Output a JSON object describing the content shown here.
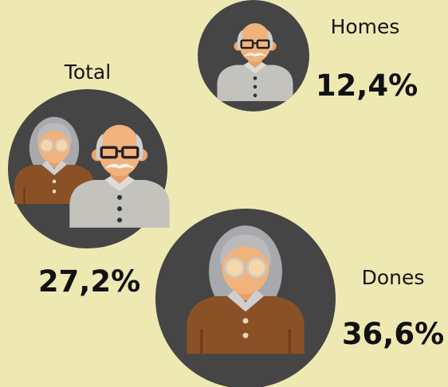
{
  "items": [
    {
      "label": "Homes",
      "value": "12,4%"
    },
    {
      "label": "Total",
      "value": "27,2%"
    },
    {
      "label": "Dones",
      "value": "36,6%"
    }
  ]
}
